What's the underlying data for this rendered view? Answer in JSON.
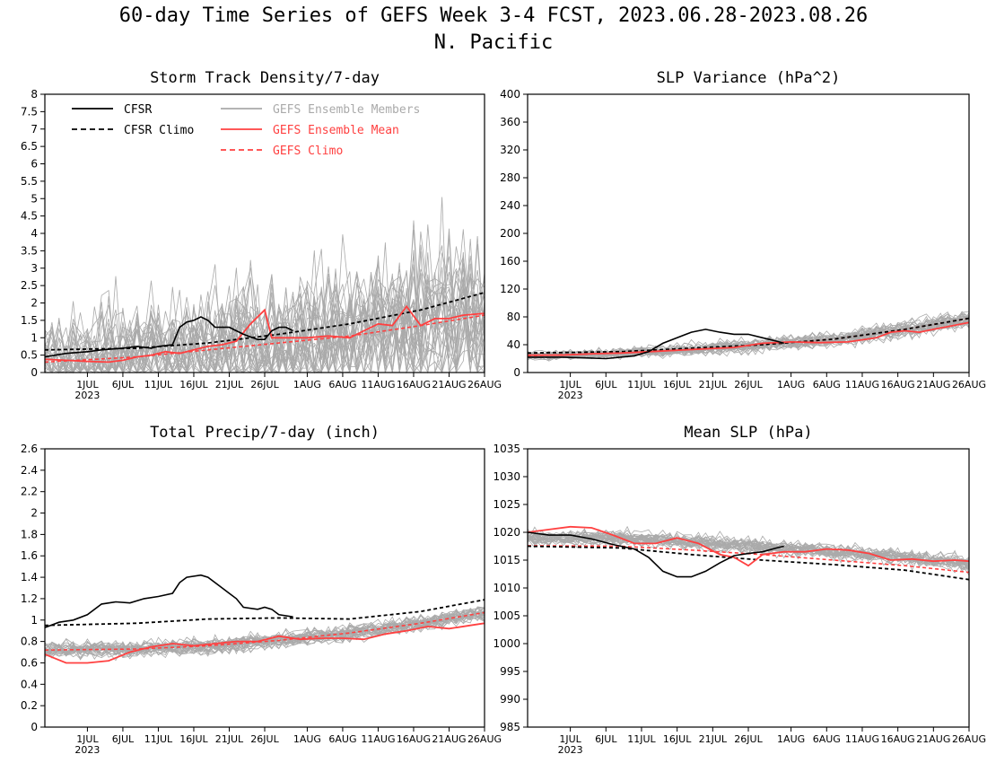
{
  "page": {
    "title_line1": "60-day Time Series of GEFS Week 3-4 FCST, 2023.06.28-2023.08.26",
    "title_line2": "N. Pacific"
  },
  "colors": {
    "cfsr": "#000000",
    "gefs_members": "#aaaaaa",
    "gefs_mean": "#ff4040",
    "gefs_climo": "#ff4040"
  },
  "legend": {
    "cfsr": "CFSR",
    "cfsr_climo": "CFSR Climo",
    "members": "GEFS Ensemble Members",
    "mean": "GEFS Ensemble Mean",
    "gefs_climo": "GEFS Climo"
  },
  "x_axis": {
    "day_range": [
      -3,
      59
    ],
    "tick_days": [
      3,
      8,
      13,
      18,
      23,
      28,
      34,
      39,
      44,
      49,
      54,
      59
    ],
    "tick_labels": [
      "1JUL",
      "6JUL",
      "11JUL",
      "16JUL",
      "21JUL",
      "26JUL",
      "1AUG",
      "6AUG",
      "11AUG",
      "16AUG",
      "21AUG",
      "26AUG"
    ],
    "year_label": "2023"
  },
  "chart_data": [
    {
      "type": "line",
      "title": "Storm Track Density/7-day",
      "ylim": [
        0,
        8
      ],
      "yticks": [
        "0",
        "0.5",
        "1",
        "1.5",
        "2",
        "2.5",
        "3",
        "3.5",
        "4",
        "4.5",
        "5",
        "5.5",
        "6",
        "6.5",
        "7",
        "7.5",
        "8"
      ],
      "ytick_values": [
        0,
        0.5,
        1,
        1.5,
        2,
        2.5,
        3,
        3.5,
        4,
        4.5,
        5,
        5.5,
        6,
        6.5,
        7,
        7.5,
        8
      ],
      "legend_shown": true,
      "cfsr": [
        [
          -3,
          0.45
        ],
        [
          0,
          0.55
        ],
        [
          3,
          0.6
        ],
        [
          5,
          0.65
        ],
        [
          8,
          0.7
        ],
        [
          10,
          0.75
        ],
        [
          12,
          0.7
        ],
        [
          13,
          0.75
        ],
        [
          15,
          0.8
        ],
        [
          16,
          1.3
        ],
        [
          17,
          1.45
        ],
        [
          18,
          1.5
        ],
        [
          19,
          1.6
        ],
        [
          20,
          1.5
        ],
        [
          21,
          1.3
        ],
        [
          23,
          1.3
        ],
        [
          25,
          1.1
        ],
        [
          27,
          0.95
        ],
        [
          28,
          0.95
        ],
        [
          29,
          1.2
        ],
        [
          30,
          1.3
        ],
        [
          31,
          1.3
        ],
        [
          32,
          1.2
        ]
      ],
      "cfsr_climo": [
        [
          -3,
          0.65
        ],
        [
          10,
          0.7
        ],
        [
          20,
          0.85
        ],
        [
          30,
          1.1
        ],
        [
          40,
          1.4
        ],
        [
          50,
          1.8
        ],
        [
          59,
          2.3
        ]
      ],
      "gefs_mean": [
        [
          -3,
          0.38
        ],
        [
          0,
          0.35
        ],
        [
          3,
          0.32
        ],
        [
          6,
          0.3
        ],
        [
          8,
          0.35
        ],
        [
          10,
          0.45
        ],
        [
          12,
          0.5
        ],
        [
          14,
          0.6
        ],
        [
          16,
          0.55
        ],
        [
          18,
          0.65
        ],
        [
          20,
          0.75
        ],
        [
          22,
          0.8
        ],
        [
          24,
          0.9
        ],
        [
          26,
          1.4
        ],
        [
          28,
          1.8
        ],
        [
          29,
          1.0
        ],
        [
          31,
          1.0
        ],
        [
          34,
          1.0
        ],
        [
          37,
          1.05
        ],
        [
          40,
          1.0
        ],
        [
          42,
          1.2
        ],
        [
          44,
          1.4
        ],
        [
          46,
          1.35
        ],
        [
          48,
          1.9
        ],
        [
          50,
          1.35
        ],
        [
          52,
          1.55
        ],
        [
          54,
          1.55
        ],
        [
          56,
          1.65
        ],
        [
          59,
          1.7
        ]
      ],
      "gefs_climo": [
        [
          -3,
          0.3
        ],
        [
          10,
          0.45
        ],
        [
          20,
          0.65
        ],
        [
          30,
          0.85
        ],
        [
          40,
          1.05
        ],
        [
          50,
          1.35
        ],
        [
          59,
          1.65
        ]
      ]
    },
    {
      "type": "line",
      "title": "SLP Variance (hPa^2)",
      "ylim": [
        0,
        400
      ],
      "yticks": [
        "0",
        "40",
        "80",
        "120",
        "160",
        "200",
        "240",
        "280",
        "320",
        "360",
        "400"
      ],
      "ytick_values": [
        0,
        40,
        80,
        120,
        160,
        200,
        240,
        280,
        320,
        360,
        400
      ],
      "legend_shown": false,
      "cfsr": [
        [
          -3,
          22
        ],
        [
          2,
          22
        ],
        [
          5,
          21
        ],
        [
          8,
          20
        ],
        [
          10,
          22
        ],
        [
          12,
          24
        ],
        [
          14,
          30
        ],
        [
          16,
          42
        ],
        [
          18,
          50
        ],
        [
          20,
          58
        ],
        [
          22,
          62
        ],
        [
          24,
          58
        ],
        [
          26,
          55
        ],
        [
          28,
          55
        ],
        [
          30,
          50
        ],
        [
          32,
          45
        ],
        [
          33,
          42
        ]
      ],
      "cfsr_climo": [
        [
          -3,
          28
        ],
        [
          10,
          30
        ],
        [
          20,
          35
        ],
        [
          30,
          40
        ],
        [
          40,
          48
        ],
        [
          50,
          62
        ],
        [
          59,
          78
        ]
      ],
      "gefs_mean": [
        [
          -3,
          25
        ],
        [
          2,
          25
        ],
        [
          6,
          27
        ],
        [
          10,
          28
        ],
        [
          14,
          30
        ],
        [
          18,
          32
        ],
        [
          22,
          34
        ],
        [
          26,
          36
        ],
        [
          30,
          42
        ],
        [
          34,
          44
        ],
        [
          38,
          43
        ],
        [
          42,
          44
        ],
        [
          46,
          50
        ],
        [
          48,
          58
        ],
        [
          50,
          60
        ],
        [
          52,
          58
        ],
        [
          54,
          62
        ],
        [
          56,
          66
        ],
        [
          59,
          72
        ]
      ],
      "gefs_climo": [
        [
          -3,
          24
        ],
        [
          10,
          28
        ],
        [
          20,
          33
        ],
        [
          30,
          40
        ],
        [
          40,
          48
        ],
        [
          50,
          62
        ],
        [
          59,
          78
        ]
      ]
    },
    {
      "type": "line",
      "title": "Total Precip/7-day (inch)",
      "ylim": [
        0,
        2.6
      ],
      "yticks": [
        "0",
        "0.2",
        "0.4",
        "0.6",
        "0.8",
        "1",
        "1.2",
        "1.4",
        "1.6",
        "1.8",
        "2",
        "2.2",
        "2.4",
        "2.6"
      ],
      "ytick_values": [
        0,
        0.2,
        0.4,
        0.6,
        0.8,
        1,
        1.2,
        1.4,
        1.6,
        1.8,
        2,
        2.2,
        2.4,
        2.6
      ],
      "legend_shown": false,
      "cfsr": [
        [
          -3,
          0.93
        ],
        [
          -1,
          0.98
        ],
        [
          1,
          1.0
        ],
        [
          3,
          1.05
        ],
        [
          5,
          1.15
        ],
        [
          7,
          1.17
        ],
        [
          9,
          1.16
        ],
        [
          11,
          1.2
        ],
        [
          13,
          1.22
        ],
        [
          15,
          1.25
        ],
        [
          16,
          1.35
        ],
        [
          17,
          1.4
        ],
        [
          19,
          1.42
        ],
        [
          20,
          1.4
        ],
        [
          22,
          1.3
        ],
        [
          24,
          1.2
        ],
        [
          25,
          1.12
        ],
        [
          27,
          1.1
        ],
        [
          28,
          1.12
        ],
        [
          29,
          1.1
        ],
        [
          30,
          1.05
        ],
        [
          32,
          1.03
        ]
      ],
      "cfsr_climo": [
        [
          -3,
          0.95
        ],
        [
          10,
          0.97
        ],
        [
          20,
          1.01
        ],
        [
          30,
          1.02
        ],
        [
          40,
          1.01
        ],
        [
          50,
          1.08
        ],
        [
          59,
          1.19
        ]
      ],
      "gefs_mean": [
        [
          -3,
          0.68
        ],
        [
          0,
          0.6
        ],
        [
          3,
          0.6
        ],
        [
          6,
          0.62
        ],
        [
          9,
          0.7
        ],
        [
          12,
          0.75
        ],
        [
          15,
          0.78
        ],
        [
          18,
          0.76
        ],
        [
          21,
          0.78
        ],
        [
          24,
          0.8
        ],
        [
          27,
          0.8
        ],
        [
          30,
          0.85
        ],
        [
          33,
          0.82
        ],
        [
          36,
          0.83
        ],
        [
          39,
          0.83
        ],
        [
          42,
          0.82
        ],
        [
          45,
          0.87
        ],
        [
          48,
          0.9
        ],
        [
          51,
          0.94
        ],
        [
          54,
          0.92
        ],
        [
          57,
          0.95
        ],
        [
          59,
          0.97
        ]
      ],
      "gefs_climo": [
        [
          -3,
          0.72
        ],
        [
          10,
          0.73
        ],
        [
          20,
          0.76
        ],
        [
          30,
          0.81
        ],
        [
          40,
          0.88
        ],
        [
          50,
          0.97
        ],
        [
          59,
          1.07
        ]
      ]
    },
    {
      "type": "line",
      "title": "Mean SLP (hPa)",
      "ylim": [
        985,
        1035
      ],
      "yticks": [
        "985",
        "990",
        "995",
        "1000",
        "1005",
        "1010",
        "1015",
        "1020",
        "1025",
        "1030",
        "1035"
      ],
      "ytick_values": [
        985,
        990,
        995,
        1000,
        1005,
        1010,
        1015,
        1020,
        1025,
        1030,
        1035
      ],
      "legend_shown": false,
      "cfsr": [
        [
          -3,
          1020
        ],
        [
          0,
          1019.5
        ],
        [
          3,
          1019.5
        ],
        [
          6,
          1018.8
        ],
        [
          9,
          1017.8
        ],
        [
          12,
          1017
        ],
        [
          14,
          1015.5
        ],
        [
          16,
          1013
        ],
        [
          18,
          1012
        ],
        [
          20,
          1012
        ],
        [
          22,
          1013
        ],
        [
          24,
          1014.5
        ],
        [
          26,
          1015.8
        ],
        [
          28,
          1016.2
        ],
        [
          30,
          1016.5
        ],
        [
          32,
          1017.2
        ],
        [
          33,
          1017.5
        ]
      ],
      "cfsr_climo": [
        [
          -3,
          1017.5
        ],
        [
          10,
          1017.2
        ],
        [
          20,
          1016
        ],
        [
          30,
          1015
        ],
        [
          40,
          1014.2
        ],
        [
          50,
          1013.2
        ],
        [
          59,
          1011.5
        ]
      ],
      "gefs_mean": [
        [
          -3,
          1020
        ],
        [
          0,
          1020.5
        ],
        [
          3,
          1021
        ],
        [
          6,
          1020.8
        ],
        [
          9,
          1019.5
        ],
        [
          12,
          1018
        ],
        [
          15,
          1018
        ],
        [
          18,
          1019
        ],
        [
          21,
          1018
        ],
        [
          24,
          1016
        ],
        [
          26,
          1015.5
        ],
        [
          28,
          1014
        ],
        [
          30,
          1016
        ],
        [
          33,
          1016.5
        ],
        [
          36,
          1016.5
        ],
        [
          39,
          1017
        ],
        [
          42,
          1016.8
        ],
        [
          45,
          1016.2
        ],
        [
          48,
          1015
        ],
        [
          51,
          1015.2
        ],
        [
          54,
          1014.8
        ],
        [
          57,
          1015
        ],
        [
          59,
          1014.8
        ]
      ],
      "gefs_climo": [
        [
          -3,
          1017.6
        ],
        [
          10,
          1017.5
        ],
        [
          20,
          1016.8
        ],
        [
          30,
          1016
        ],
        [
          40,
          1015
        ],
        [
          50,
          1014
        ],
        [
          59,
          1012.8
        ]
      ]
    }
  ]
}
